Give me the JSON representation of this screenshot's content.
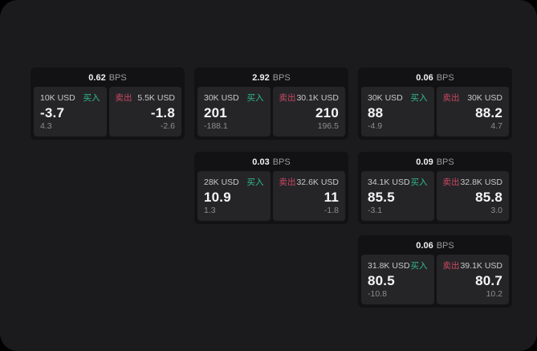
{
  "labels": {
    "bps_unit": "BPS",
    "buy": "买入",
    "sell": "卖出"
  },
  "colors": {
    "outer_background": "#000000",
    "window_background": "#1b1b1d",
    "card_background": "#121214",
    "tile_background": "#252528",
    "buy_green": "#2ebd85",
    "sell_red": "#cb4861",
    "text_primary": "#f5f5f5",
    "text_secondary": "#c9c9c9",
    "text_muted": "#8d8d8d"
  },
  "cards": [
    {
      "bps": "0.62",
      "buy": {
        "amount": "10K USD",
        "price": "-3.7",
        "delta": "4.3"
      },
      "sell": {
        "amount": "5.5K USD",
        "price": "-1.8",
        "delta": "-2.6"
      }
    },
    {
      "bps": "2.92",
      "buy": {
        "amount": "30K USD",
        "price": "201",
        "delta": "-188.1"
      },
      "sell": {
        "amount": "30.1K USD",
        "price": "210",
        "delta": "196.5"
      }
    },
    {
      "bps": "0.06",
      "buy": {
        "amount": "30K USD",
        "price": "88",
        "delta": "-4.9"
      },
      "sell": {
        "amount": "30K USD",
        "price": "88.2",
        "delta": "4.7"
      }
    },
    {
      "bps": "0.03",
      "buy": {
        "amount": "28K USD",
        "price": "10.9",
        "delta": "1.3"
      },
      "sell": {
        "amount": "32.6K USD",
        "price": "11",
        "delta": "-1.8"
      }
    },
    {
      "bps": "0.09",
      "buy": {
        "amount": "34.1K USD",
        "price": "85.5",
        "delta": "-3.1"
      },
      "sell": {
        "amount": "32.8K USD",
        "price": "85.8",
        "delta": "3.0"
      }
    },
    {
      "bps": "0.06",
      "buy": {
        "amount": "31.8K USD",
        "price": "80.5",
        "delta": "-10.8"
      },
      "sell": {
        "amount": "39.1K USD",
        "price": "80.7",
        "delta": "10.2"
      }
    }
  ]
}
